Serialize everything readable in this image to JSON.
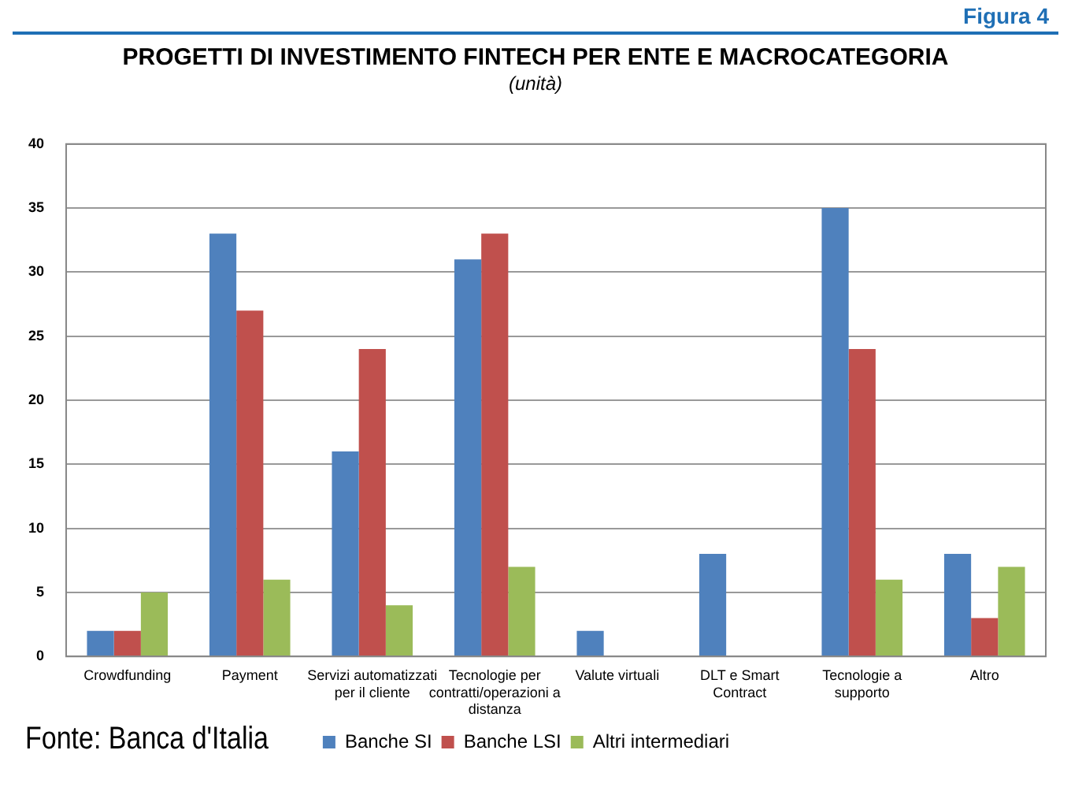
{
  "chart_data": {
    "type": "bar",
    "title": "PROGETTI DI INVESTIMENTO FINTECH PER ENTE E MACROCATEGORIA",
    "subtitle": "(unità)",
    "annotations": [
      "Figura 4",
      "Fonte: Banca d'Italia"
    ],
    "categories": [
      "Crowdfunding",
      "Payment",
      "Servizi automatizzati per il cliente",
      "Tecnologie per contratti/operazioni a distanza",
      "Valute virtuali",
      "DLT e Smart Contract",
      "Tecnologie a supporto",
      "Altro"
    ],
    "series": [
      {
        "name": "Banche SI",
        "color": "#4f81bd",
        "values": [
          2,
          33,
          16,
          31,
          2,
          8,
          35,
          8
        ]
      },
      {
        "name": "Banche LSI",
        "color": "#c0504d",
        "values": [
          2,
          27,
          24,
          33,
          0,
          0,
          24,
          3
        ]
      },
      {
        "name": "Altri intermediari",
        "color": "#9bbb59",
        "values": [
          5,
          6,
          4,
          7,
          0,
          0,
          6,
          7
        ]
      }
    ],
    "ylim": [
      0,
      40
    ],
    "yticks": [
      0,
      5,
      10,
      15,
      20,
      25,
      30,
      35,
      40
    ],
    "grid": "y",
    "legend": "bottom"
  }
}
